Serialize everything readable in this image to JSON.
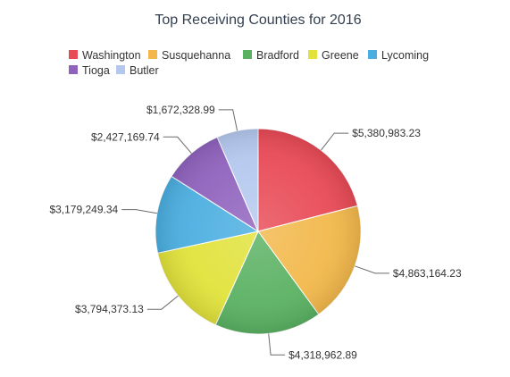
{
  "chart_data": {
    "type": "pie",
    "title": "Top Receiving Counties for 2016",
    "legend_position": "top",
    "categories": [
      "Washington",
      "Susquehanna",
      "Bradford",
      "Greene",
      "Lycoming",
      "Tioga",
      "Butler"
    ],
    "values": [
      5380983.23,
      4863164.23,
      4318962.89,
      3794373.13,
      3179249.34,
      2427169.74,
      1672328.99
    ],
    "labels": [
      "$5,380,983.23",
      "$4,863,164.23",
      "$4,318,962.89",
      "$3,794,373.13",
      "$3,179,249.34",
      "$2,427,169.74",
      "$1,672,328.99"
    ],
    "colors": [
      "#e84a56",
      "#f2b84b",
      "#5ab162",
      "#e1e23b",
      "#4baee0",
      "#8f62bd",
      "#b4c8ee"
    ]
  }
}
